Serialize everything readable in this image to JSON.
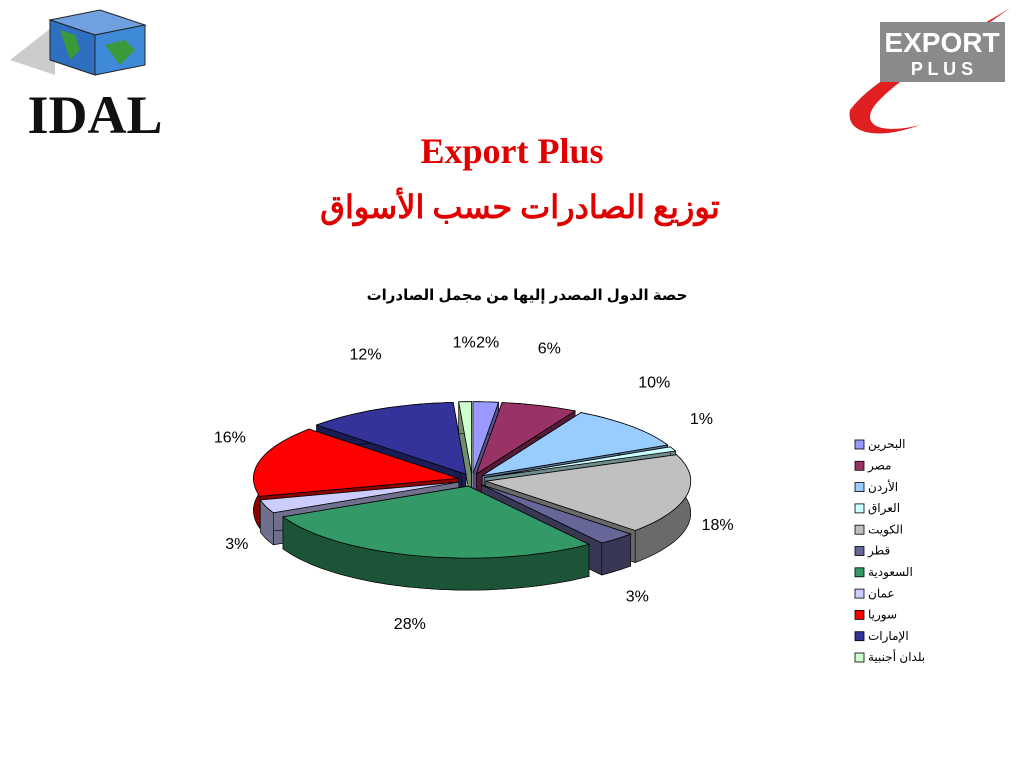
{
  "header": {
    "logo_left": "IDAL",
    "logo_right_top": "EXPORT",
    "logo_right_bottom": "P L U S",
    "title": "Export Plus",
    "subtitle": "توزيع الصادرات حسب الأسواق"
  },
  "chart_data": {
    "type": "pie",
    "title": "حصة الدول المصدر إليها من مجمل الصادرات",
    "categories": [
      "البحرين",
      "مصر",
      "الأردن",
      "العراق",
      "الكويت",
      "قطر",
      "السعودية",
      "عمان",
      "سوريا",
      "الإمارات",
      "بلدان أجنبية"
    ],
    "values": [
      2,
      6,
      10,
      1,
      18,
      3,
      28,
      3,
      16,
      12,
      1
    ],
    "value_labels": [
      "2%",
      "6%",
      "10%",
      "1%",
      "18%",
      "3%",
      "28%",
      "3%",
      "16%",
      "12%",
      "1%"
    ],
    "colors": [
      "#9999ff",
      "#993366",
      "#99ccff",
      "#ccffff",
      "#c0c0c0",
      "#666699",
      "#339966",
      "#ccccff",
      "#ff0000",
      "#333399",
      "#ccffcc"
    ],
    "legend": "right"
  }
}
